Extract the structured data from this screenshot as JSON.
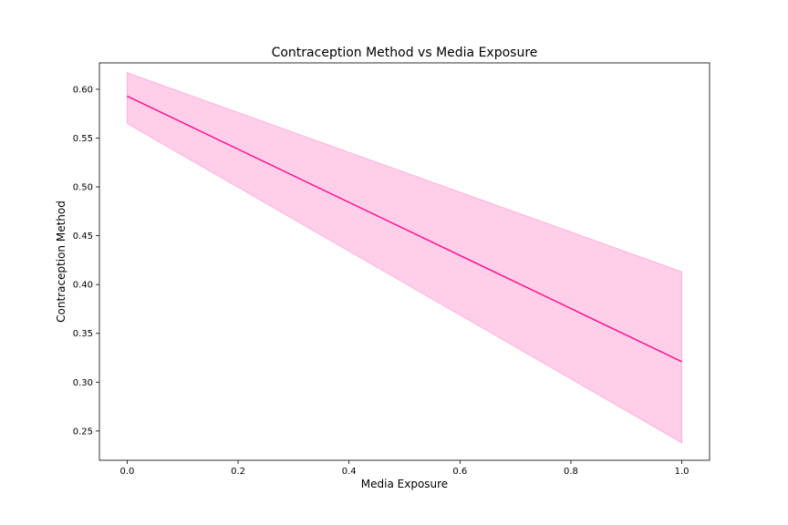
{
  "chart_data": {
    "type": "line",
    "title": "Contraception Method vs Media Exposure",
    "xlabel": "Media Exposure",
    "ylabel": "Contraception Method",
    "xlim": [
      -0.05,
      1.05
    ],
    "ylim": [
      0.22,
      0.627
    ],
    "x_ticks": [
      0.0,
      0.2,
      0.4,
      0.6,
      0.8,
      1.0
    ],
    "x_tick_labels": [
      "0.0",
      "0.2",
      "0.4",
      "0.6",
      "0.8",
      "1.0"
    ],
    "y_ticks": [
      0.25,
      0.3,
      0.35,
      0.4,
      0.45,
      0.5,
      0.55,
      0.6
    ],
    "y_tick_labels": [
      "0.25",
      "0.30",
      "0.35",
      "0.40",
      "0.45",
      "0.50",
      "0.55",
      "0.60"
    ],
    "grid": false,
    "series": [
      {
        "x": [
          0.0,
          1.0
        ],
        "values": [
          0.593,
          0.321
        ],
        "ci_lower": [
          0.565,
          0.238
        ],
        "ci_upper": [
          0.617,
          0.413
        ],
        "color": "#ff1493",
        "band_color": "#ffb3dd"
      }
    ]
  }
}
